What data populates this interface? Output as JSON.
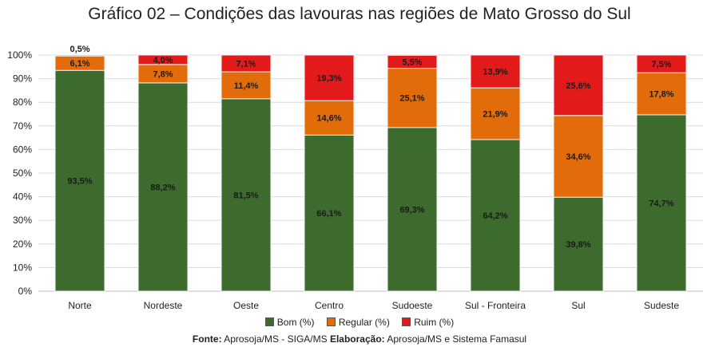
{
  "title": {
    "prefix": "Gráfico 02",
    "separator": " – ",
    "text": "Condições das lavouras nas regiões de Mato Grosso do Sul"
  },
  "source": {
    "fonte_label": "Fonte:",
    "fonte_text": "Aprosoja/MS - SIGA/MS",
    "elaboracao_label": "Elaboração:",
    "elaboracao_text": "Aprosoja/MS e Sistema Famasul"
  },
  "colors": {
    "bom": "#3d6b2e",
    "regular": "#e36c0a",
    "ruim": "#e31a1a"
  },
  "chart_data": {
    "type": "bar",
    "stacked": true,
    "categories": [
      "Norte",
      "Nordeste",
      "Oeste",
      "Centro",
      "Sudoeste",
      "Sul - Fronteira",
      "Sul",
      "Sudeste"
    ],
    "series": [
      {
        "name": "Bom (%)",
        "values": [
          93.5,
          88.2,
          81.5,
          66.1,
          69.3,
          64.2,
          39.8,
          74.7
        ],
        "labels": [
          "93,5%",
          "88,2%",
          "81,5%",
          "66,1%",
          "69,3%",
          "64,2%",
          "39,8%",
          "74,7%"
        ]
      },
      {
        "name": "Regular (%)",
        "values": [
          6.1,
          7.8,
          11.4,
          14.6,
          25.1,
          21.9,
          34.6,
          17.8
        ],
        "labels": [
          "6,1%",
          "7,8%",
          "11,4%",
          "14,6%",
          "25,1%",
          "21,9%",
          "34,6%",
          "17,8%"
        ]
      },
      {
        "name": "Ruim (%)",
        "values": [
          0.5,
          4.0,
          7.1,
          19.3,
          5.5,
          13.9,
          25.6,
          7.5
        ],
        "labels": [
          "0,5%",
          "4,0%",
          "7,1%",
          "19,3%",
          "5,5%",
          "13,9%",
          "25,6%",
          "7,5%"
        ]
      }
    ],
    "yticks": [
      "0%",
      "10%",
      "20%",
      "30%",
      "40%",
      "50%",
      "60%",
      "70%",
      "80%",
      "90%",
      "100%"
    ],
    "ylim": [
      0,
      100
    ],
    "grid": true,
    "legend": "bottom"
  }
}
